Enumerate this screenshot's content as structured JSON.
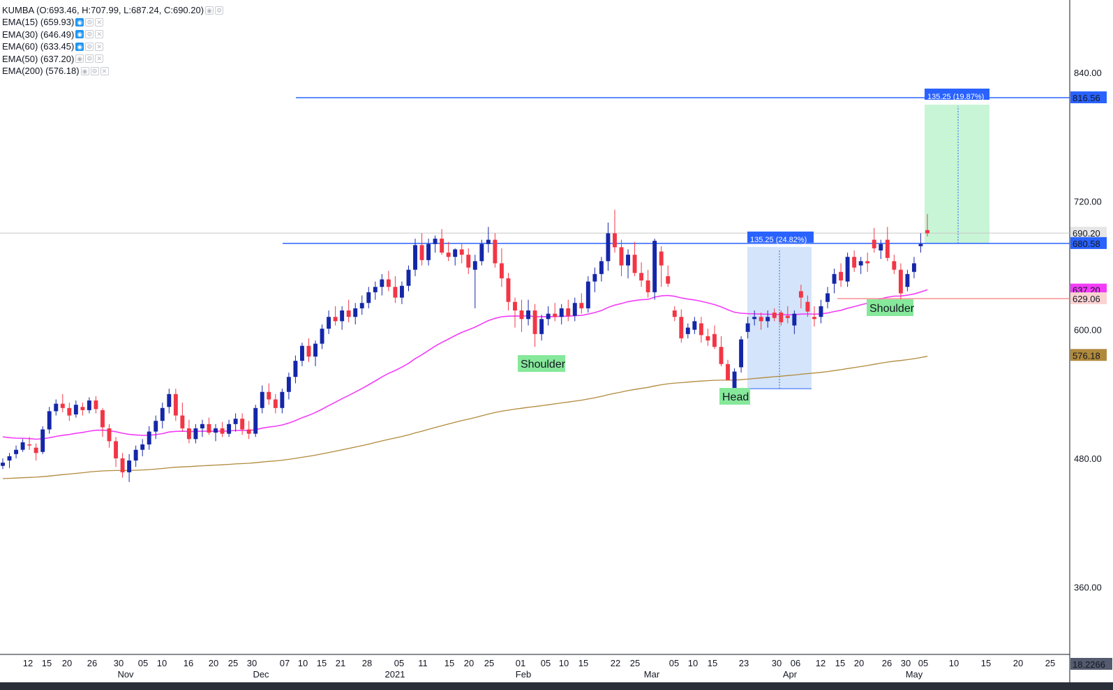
{
  "legend": {
    "symbol": "KUMBA (O:693.46, H:707.99, L:687.24, C:690.20)",
    "indicators": [
      {
        "label": "EMA(15) (659.93)",
        "active": true
      },
      {
        "label": "EMA(30) (646.49)",
        "active": true
      },
      {
        "label": "EMA(60) (633.45)",
        "active": true
      },
      {
        "label": "EMA(50) (637.20)",
        "active": false
      },
      {
        "label": "EMA(200) (576.18)",
        "active": false
      }
    ]
  },
  "chart_data": {
    "type": "candlestick",
    "symbol": "KUMBA",
    "ylim": [
      320,
      880
    ],
    "y_ticks": [
      "360.00",
      "480.00",
      "600.00",
      "720.00",
      "840.00"
    ],
    "x_ticks": [
      "12",
      "15",
      "20",
      "26",
      "30",
      "05",
      "10",
      "16",
      "20",
      "25",
      "30",
      "07",
      "10",
      "15",
      "21",
      "28",
      "05",
      "11",
      "15",
      "20",
      "25",
      "01",
      "05",
      "10",
      "15",
      "22",
      "25",
      "05",
      "10",
      "15",
      "23",
      "30",
      "06",
      "12",
      "15",
      "20",
      "26",
      "30",
      "05",
      "10",
      "15",
      "20",
      "25"
    ],
    "month_labels": [
      "Nov",
      "Dec",
      "2021",
      "Feb",
      "Mar",
      "Apr",
      "May"
    ],
    "ohlc": [
      [
        473,
        480,
        470,
        476
      ],
      [
        478,
        485,
        471,
        482
      ],
      [
        484,
        492,
        480,
        488
      ],
      [
        488,
        498,
        486,
        495
      ],
      [
        493,
        500,
        488,
        492
      ],
      [
        490,
        494,
        478,
        485
      ],
      [
        486,
        510,
        484,
        507
      ],
      [
        507,
        528,
        503,
        524
      ],
      [
        524,
        535,
        520,
        531
      ],
      [
        531,
        540,
        523,
        527
      ],
      [
        527,
        532,
        515,
        520
      ],
      [
        521,
        534,
        518,
        530
      ],
      [
        528,
        532,
        520,
        525
      ],
      [
        525,
        537,
        522,
        534
      ],
      [
        534,
        538,
        522,
        526
      ],
      [
        525,
        527,
        500,
        509
      ],
      [
        508,
        512,
        490,
        496
      ],
      [
        496,
        500,
        472,
        480
      ],
      [
        480,
        485,
        462,
        467
      ],
      [
        467,
        484,
        458,
        478
      ],
      [
        478,
        492,
        472,
        488
      ],
      [
        488,
        498,
        482,
        493
      ],
      [
        493,
        510,
        488,
        505
      ],
      [
        505,
        520,
        498,
        515
      ],
      [
        515,
        532,
        508,
        527
      ],
      [
        528,
        545,
        522,
        540
      ],
      [
        540,
        545,
        515,
        520
      ],
      [
        520,
        532,
        505,
        508
      ],
      [
        508,
        516,
        494,
        498
      ],
      [
        498,
        512,
        494,
        508
      ],
      [
        508,
        516,
        500,
        512
      ],
      [
        512,
        518,
        502,
        504
      ],
      [
        504,
        512,
        496,
        508
      ],
      [
        508,
        514,
        500,
        503
      ],
      [
        503,
        516,
        500,
        512
      ],
      [
        512,
        522,
        505,
        517
      ],
      [
        517,
        522,
        502,
        507
      ],
      [
        507,
        515,
        498,
        503
      ],
      [
        503,
        530,
        500,
        527
      ],
      [
        527,
        548,
        522,
        542
      ],
      [
        542,
        550,
        530,
        535
      ],
      [
        535,
        540,
        522,
        527
      ],
      [
        527,
        545,
        522,
        542
      ],
      [
        542,
        560,
        535,
        556
      ],
      [
        556,
        576,
        550,
        571
      ],
      [
        571,
        588,
        566,
        585
      ],
      [
        585,
        592,
        570,
        575
      ],
      [
        575,
        590,
        566,
        587
      ],
      [
        587,
        605,
        582,
        601
      ],
      [
        601,
        618,
        596,
        612
      ],
      [
        612,
        622,
        604,
        608
      ],
      [
        608,
        622,
        600,
        618
      ],
      [
        618,
        628,
        607,
        612
      ],
      [
        612,
        625,
        605,
        620
      ],
      [
        620,
        632,
        614,
        625
      ],
      [
        625,
        640,
        620,
        635
      ],
      [
        635,
        645,
        628,
        640
      ],
      [
        640,
        652,
        632,
        647
      ],
      [
        647,
        655,
        636,
        640
      ],
      [
        640,
        650,
        625,
        630
      ],
      [
        630,
        645,
        624,
        641
      ],
      [
        641,
        660,
        636,
        656
      ],
      [
        656,
        685,
        650,
        679
      ],
      [
        679,
        690,
        660,
        665
      ],
      [
        665,
        685,
        660,
        680
      ],
      [
        680,
        688,
        672,
        685
      ],
      [
        685,
        694,
        670,
        672
      ],
      [
        672,
        682,
        664,
        668
      ],
      [
        668,
        676,
        660,
        675
      ],
      [
        675,
        680,
        662,
        670
      ],
      [
        670,
        676,
        652,
        658
      ],
      [
        656,
        670,
        620,
        664
      ],
      [
        664,
        684,
        660,
        680
      ],
      [
        680,
        696,
        672,
        684
      ],
      [
        684,
        690,
        658,
        662
      ],
      [
        662,
        676,
        640,
        648
      ],
      [
        648,
        653,
        618,
        626
      ],
      [
        626,
        630,
        602,
        618
      ],
      [
        618,
        628,
        598,
        610
      ],
      [
        610,
        628,
        604,
        618
      ],
      [
        618,
        624,
        584,
        596
      ],
      [
        596,
        614,
        590,
        610
      ],
      [
        610,
        622,
        604,
        615
      ],
      [
        615,
        625,
        608,
        612
      ],
      [
        612,
        624,
        605,
        620
      ],
      [
        620,
        628,
        608,
        613
      ],
      [
        613,
        630,
        608,
        625
      ],
      [
        625,
        634,
        615,
        620
      ],
      [
        620,
        650,
        616,
        645
      ],
      [
        645,
        658,
        635,
        652
      ],
      [
        652,
        668,
        645,
        664
      ],
      [
        664,
        700,
        655,
        690
      ],
      [
        690,
        712,
        672,
        677
      ],
      [
        677,
        684,
        650,
        660
      ],
      [
        660,
        675,
        648,
        670
      ],
      [
        670,
        682,
        650,
        653
      ],
      [
        653,
        663,
        640,
        646
      ],
      [
        646,
        656,
        630,
        635
      ],
      [
        635,
        685,
        628,
        683
      ],
      [
        673,
        678,
        640,
        660
      ],
      [
        650,
        660,
        640,
        643
      ],
      [
        618,
        622,
        608,
        612
      ],
      [
        612,
        619,
        588,
        592
      ],
      [
        596,
        606,
        592,
        602
      ],
      [
        600,
        612,
        596,
        608
      ],
      [
        606,
        612,
        588,
        595
      ],
      [
        594,
        601,
        585,
        590
      ],
      [
        596,
        604,
        582,
        584
      ],
      [
        584,
        594,
        566,
        568
      ],
      [
        568,
        572,
        553,
        553
      ],
      [
        545,
        564,
        535,
        561
      ],
      [
        565,
        594,
        560,
        591
      ],
      [
        598,
        612,
        592,
        606
      ],
      [
        610,
        618,
        604,
        612
      ],
      [
        612,
        616,
        600,
        608
      ],
      [
        608,
        618,
        602,
        612
      ],
      [
        616,
        620,
        608,
        611
      ],
      [
        616,
        618,
        604,
        607
      ],
      [
        613,
        622,
        606,
        611
      ],
      [
        604,
        618,
        596,
        615
      ],
      [
        636,
        642,
        620,
        630
      ],
      [
        626,
        632,
        612,
        617
      ],
      [
        612,
        622,
        603,
        610
      ],
      [
        612,
        628,
        606,
        622
      ],
      [
        626,
        640,
        620,
        634
      ],
      [
        643,
        657,
        634,
        652
      ],
      [
        654,
        662,
        640,
        646
      ],
      [
        645,
        672,
        640,
        668
      ],
      [
        668,
        674,
        654,
        658
      ],
      [
        660,
        668,
        652,
        664
      ],
      [
        664,
        672,
        654,
        662
      ],
      [
        684,
        695,
        672,
        676
      ],
      [
        674,
        684,
        666,
        680
      ],
      [
        684,
        696,
        664,
        667
      ],
      [
        664,
        670,
        652,
        656
      ],
      [
        656,
        662,
        626,
        634
      ],
      [
        640,
        656,
        636,
        652
      ],
      [
        654,
        668,
        648,
        662
      ],
      [
        678,
        690,
        672,
        680
      ],
      [
        693,
        708,
        687,
        690
      ]
    ],
    "series": [
      {
        "name": "EMA(50)",
        "color": "#f23cf7",
        "values": []
      },
      {
        "name": "EMA(200)",
        "color": "#b08a3c",
        "values": []
      }
    ],
    "horizontal_lines": [
      {
        "value": 816.56,
        "label": "816.56",
        "color": "#2962ff"
      },
      {
        "value": 690.2,
        "label": "690.20",
        "color": "#555555"
      },
      {
        "value": 680.58,
        "label": "680.58",
        "color": "#2962ff"
      },
      {
        "value": 637.2,
        "label": "637.20",
        "color": "#f23cf7"
      },
      {
        "value": 629.06,
        "label": "629.06",
        "color": "#f77a7a"
      },
      {
        "value": 576.18,
        "label": "576.18",
        "color": "#b08a3c"
      }
    ],
    "measure_callouts": [
      "135.25 (24.82%)",
      "135.25 (19.87%)"
    ],
    "annotations": [
      "Shoulder",
      "Head",
      "Shoulder"
    ],
    "last_label": "18.2266"
  },
  "colors": {
    "up": "#1427a8",
    "down": "#f23645",
    "blue_line": "#2962ff",
    "green_zone": "#c8f5d6",
    "blue_zone": "#d4e4fa",
    "pattern_bg": "#86e89a"
  }
}
